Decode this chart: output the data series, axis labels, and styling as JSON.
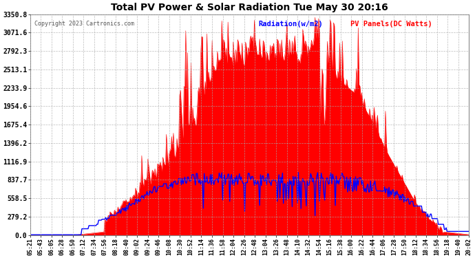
{
  "title": "Total PV Power & Solar Radiation Tue May 30 20:16",
  "copyright": "Copyright 2023 Cartronics.com",
  "legend_radiation": "Radiation(w/m2)",
  "legend_pv": "PV Panels(DC Watts)",
  "yticks": [
    0.0,
    279.2,
    558.5,
    837.7,
    1116.9,
    1396.2,
    1675.4,
    1954.6,
    2233.9,
    2513.1,
    2792.3,
    3071.6,
    3350.8
  ],
  "ytick_labels": [
    "0.0",
    "279.2",
    "558.5",
    "837.7",
    "1116.9",
    "1396.2",
    "1675.4",
    "1954.6",
    "2233.9",
    "2513.1",
    "2792.3",
    "3071.6",
    "3350.8"
  ],
  "xtick_labels": [
    "05:21",
    "05:43",
    "06:05",
    "06:28",
    "06:50",
    "07:12",
    "07:34",
    "07:56",
    "08:18",
    "08:40",
    "09:02",
    "09:24",
    "09:46",
    "10:08",
    "10:30",
    "10:52",
    "11:14",
    "11:36",
    "11:58",
    "12:04",
    "12:26",
    "12:48",
    "13:04",
    "13:26",
    "13:48",
    "14:10",
    "14:32",
    "14:54",
    "15:16",
    "15:38",
    "16:00",
    "16:22",
    "16:44",
    "17:06",
    "17:28",
    "17:50",
    "18:12",
    "18:34",
    "18:56",
    "19:18",
    "19:40",
    "20:02"
  ],
  "bg_color": "#ffffff",
  "plot_bg_color": "#ffffff",
  "grid_color": "#aaaaaa",
  "title_color": "#000000",
  "tick_color": "#000000",
  "radiation_color": "#0000ff",
  "pv_fill_color": "#ff0000",
  "pv_line_color": "#ff0000",
  "copyright_color": "#555555"
}
